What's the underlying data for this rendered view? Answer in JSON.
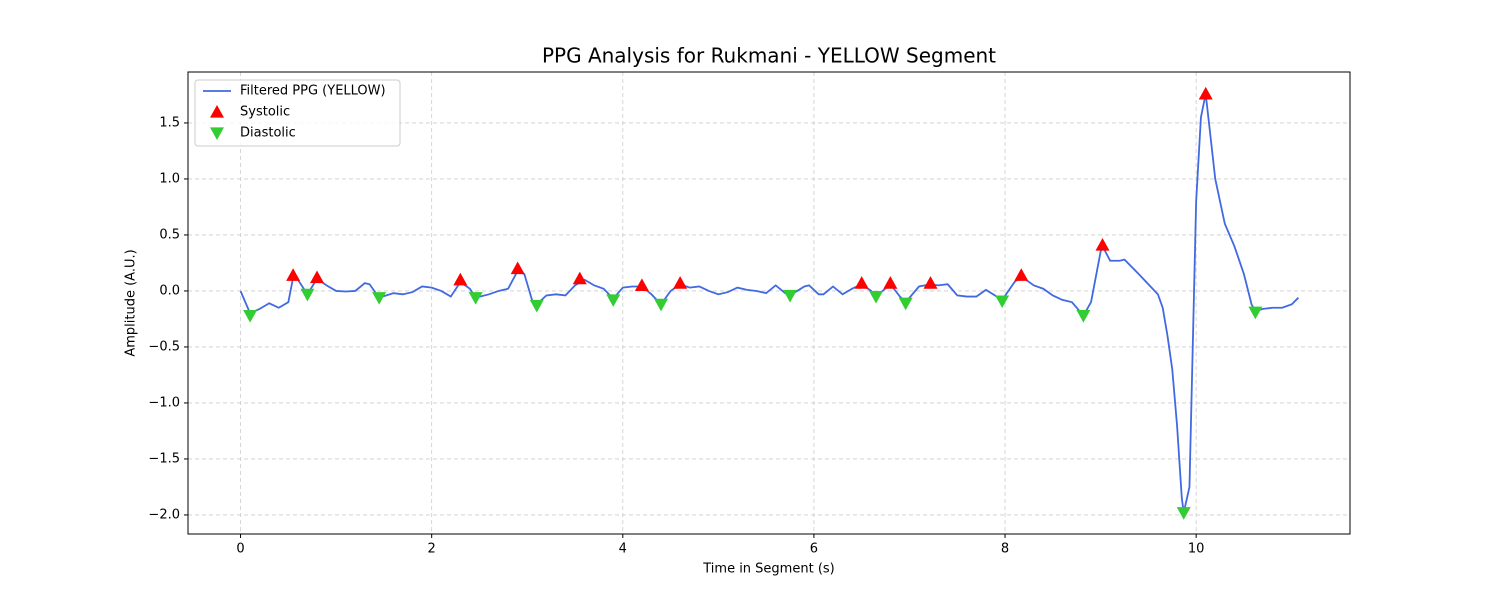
{
  "chart_data": {
    "type": "line",
    "title": "PPG Analysis for Rukmani - YELLOW Segment",
    "xlabel": "Time in Segment (s)",
    "ylabel": "Amplitude (A.U.)",
    "xlim": [
      -0.55,
      11.61
    ],
    "ylim": [
      -2.17,
      1.955
    ],
    "xticks": [
      0,
      2,
      4,
      6,
      8,
      10
    ],
    "yticks": [
      {
        "value": -2.0,
        "label": "−2.0"
      },
      {
        "value": -1.5,
        "label": "−1.5"
      },
      {
        "value": -1.0,
        "label": "−1.0"
      },
      {
        "value": -0.5,
        "label": "−0.5"
      },
      {
        "value": 0.0,
        "label": "0.0"
      },
      {
        "value": 0.5,
        "label": "0.5"
      },
      {
        "value": 1.0,
        "label": "1.0"
      },
      {
        "value": 1.5,
        "label": "1.5"
      }
    ],
    "grid": true,
    "legend": "upper left",
    "series": [
      {
        "name": "Filtered PPG (YELLOW)",
        "color": "#4169e1",
        "marker": "line",
        "x": [
          0,
          0.1,
          0.2,
          0.3,
          0.4,
          0.5,
          0.55,
          0.6,
          0.7,
          0.8,
          0.9,
          1.0,
          1.1,
          1.2,
          1.3,
          1.35,
          1.45,
          1.6,
          1.7,
          1.8,
          1.9,
          2.0,
          2.1,
          2.2,
          2.3,
          2.4,
          2.46,
          2.6,
          2.7,
          2.8,
          2.9,
          2.97,
          3.05,
          3.1,
          3.2,
          3.3,
          3.4,
          3.5,
          3.6,
          3.7,
          3.8,
          3.9,
          4.0,
          4.1,
          4.2,
          4.3,
          4.4,
          4.5,
          4.6,
          4.7,
          4.8,
          4.9,
          5.0,
          5.1,
          5.2,
          5.3,
          5.4,
          5.5,
          5.6,
          5.7,
          5.75,
          5.9,
          5.95,
          6.05,
          6.1,
          6.2,
          6.3,
          6.4,
          6.5,
          6.6,
          6.65,
          6.8,
          6.9,
          6.96,
          7.1,
          7.22,
          7.3,
          7.4,
          7.5,
          7.6,
          7.7,
          7.8,
          7.97,
          8.1,
          8.17,
          8.3,
          8.4,
          8.5,
          8.6,
          8.7,
          8.82,
          8.9,
          9.0,
          9.02,
          9.1,
          9.2,
          9.25,
          9.4,
          9.5,
          9.6,
          9.65,
          9.7,
          9.75,
          9.8,
          9.85,
          9.87,
          9.93,
          10.0,
          10.05,
          10.1,
          10.2,
          10.3,
          10.4,
          10.5,
          10.58,
          10.62,
          10.7,
          10.8,
          10.9,
          11.0,
          11.07
        ],
        "values": [
          0,
          -0.2,
          -0.16,
          -0.11,
          -0.15,
          -0.1,
          0.12,
          0.1,
          -0.03,
          0.11,
          0.05,
          0.0,
          -0.005,
          0.0,
          0.07,
          0.06,
          -0.06,
          -0.02,
          -0.03,
          -0.01,
          0.04,
          0.03,
          0.0,
          -0.05,
          0.08,
          0.02,
          -0.06,
          -0.03,
          0.0,
          0.02,
          0.18,
          0.15,
          -0.08,
          -0.12,
          -0.04,
          -0.03,
          -0.04,
          0.05,
          0.1,
          0.05,
          0.02,
          -0.07,
          0.03,
          0.04,
          0.04,
          -0.03,
          -0.12,
          0.0,
          0.06,
          0.03,
          0.04,
          0.0,
          -0.03,
          -0.01,
          0.03,
          0.01,
          0.0,
          -0.02,
          0.05,
          -0.02,
          -0.04,
          0.04,
          0.05,
          -0.03,
          -0.03,
          0.04,
          -0.03,
          0.02,
          0.06,
          0.0,
          -0.05,
          0.06,
          -0.05,
          -0.1,
          0.04,
          0.06,
          0.05,
          0.06,
          -0.04,
          -0.05,
          -0.05,
          0.01,
          -0.08,
          0.08,
          0.13,
          0.05,
          0.02,
          -0.04,
          -0.08,
          -0.1,
          -0.22,
          -0.1,
          0.35,
          0.4,
          0.27,
          0.27,
          0.28,
          0.15,
          0.06,
          -0.03,
          -0.15,
          -0.4,
          -0.7,
          -1.2,
          -1.85,
          -1.98,
          -1.75,
          0.8,
          1.55,
          1.76,
          1.0,
          0.6,
          0.4,
          0.15,
          -0.12,
          -0.18,
          -0.16,
          -0.15,
          -0.15,
          -0.12,
          -0.06
        ]
      },
      {
        "name": "Systolic",
        "color": "#ff0000",
        "marker": "triangle-up",
        "x": [
          0.55,
          0.8,
          2.3,
          2.9,
          3.55,
          4.2,
          4.6,
          6.5,
          6.8,
          7.22,
          8.17,
          9.02,
          10.1
        ],
        "values": [
          0.14,
          0.12,
          0.1,
          0.2,
          0.11,
          0.05,
          0.07,
          0.07,
          0.07,
          0.07,
          0.14,
          0.41,
          1.76
        ]
      },
      {
        "name": "Diastolic",
        "color": "#32cd32",
        "marker": "triangle-down",
        "x": [
          0.1,
          0.7,
          1.45,
          2.46,
          3.1,
          3.9,
          4.4,
          5.75,
          6.65,
          6.96,
          7.97,
          8.82,
          9.87,
          10.62
        ],
        "values": [
          -0.22,
          -0.03,
          -0.06,
          -0.06,
          -0.13,
          -0.08,
          -0.12,
          -0.04,
          -0.05,
          -0.11,
          -0.09,
          -0.22,
          -1.98,
          -0.19
        ]
      }
    ]
  }
}
